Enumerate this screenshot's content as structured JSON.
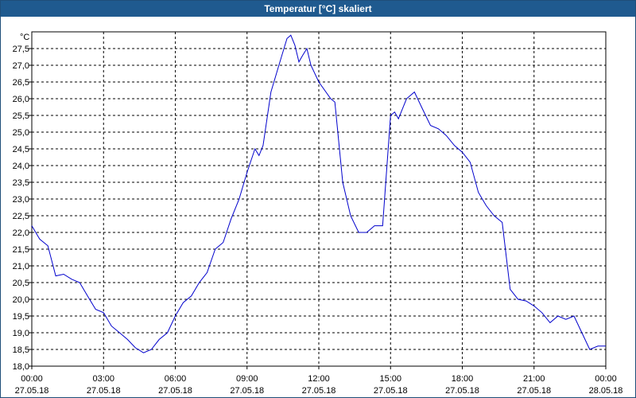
{
  "window": {
    "title": "Temperatur [°C] skaliert"
  },
  "chart_data": {
    "type": "line",
    "title": "Temperatur [°C] skaliert",
    "ylabel": "°C",
    "xlabel": "",
    "ylim": [
      18.0,
      28.0
    ],
    "xlim": [
      0,
      24
    ],
    "grid": true,
    "line_color": "#0000cc",
    "y_ticks": [
      "18,0",
      "18,5",
      "19,0",
      "19,5",
      "20,0",
      "20,5",
      "21,0",
      "21,5",
      "22,0",
      "22,5",
      "23,0",
      "23,5",
      "24,0",
      "24,5",
      "25,0",
      "25,5",
      "26,0",
      "26,5",
      "27,0",
      "27,5"
    ],
    "x_ticks": [
      {
        "time": "00:00",
        "date": "27.05.18"
      },
      {
        "time": "03:00",
        "date": "27.05.18"
      },
      {
        "time": "06:00",
        "date": "27.05.18"
      },
      {
        "time": "09:00",
        "date": "27.05.18"
      },
      {
        "time": "12:00",
        "date": "27.05.18"
      },
      {
        "time": "15:00",
        "date": "27.05.18"
      },
      {
        "time": "18:00",
        "date": "27.05.18"
      },
      {
        "time": "21:00",
        "date": "27.05.18"
      },
      {
        "time": "00:00",
        "date": "28.05.18"
      }
    ],
    "series": [
      {
        "x": [
          0,
          0.33,
          0.67,
          1,
          1.33,
          1.67,
          2,
          2.33,
          2.67,
          3,
          3.33,
          3.67,
          4,
          4.33,
          4.67,
          5,
          5.33,
          5.67,
          6,
          6.33,
          6.67,
          7,
          7.33,
          7.67,
          8,
          8.33,
          8.67,
          9,
          9.33,
          9.5,
          9.67,
          10,
          10.33,
          10.67,
          10.83,
          11,
          11.17,
          11.33,
          11.5,
          11.67,
          12,
          12.5,
          12.67,
          13,
          13.33,
          13.67,
          14,
          14.33,
          14.67,
          15,
          15.17,
          15.33,
          15.67,
          16,
          16.33,
          16.67,
          17,
          17.33,
          17.67,
          18,
          18.33,
          18.67,
          19,
          19.33,
          19.67,
          20,
          20.33,
          20.67,
          21,
          21.33,
          21.67,
          22,
          22.33,
          22.67,
          23,
          23.33,
          23.67,
          24
        ],
        "y": [
          22.2,
          21.8,
          21.6,
          20.7,
          20.75,
          20.6,
          20.5,
          20.1,
          19.7,
          19.6,
          19.2,
          19.0,
          18.8,
          18.55,
          18.4,
          18.5,
          18.8,
          19.0,
          19.5,
          19.9,
          20.1,
          20.5,
          20.8,
          21.5,
          21.7,
          22.4,
          23.0,
          23.8,
          24.5,
          24.3,
          24.6,
          26.2,
          27.0,
          27.8,
          27.9,
          27.6,
          27.1,
          27.3,
          27.5,
          27.0,
          26.5,
          26.0,
          25.9,
          23.5,
          22.5,
          22.0,
          22.0,
          22.2,
          22.2,
          25.5,
          25.6,
          25.4,
          26.0,
          26.2,
          25.7,
          25.2,
          25.1,
          24.9,
          24.6,
          24.4,
          24.1,
          23.2,
          22.8,
          22.5,
          22.3,
          20.3,
          20.0,
          19.95,
          19.8,
          19.6,
          19.3,
          19.5,
          19.4,
          19.5,
          19.0,
          18.5,
          18.6,
          18.6
        ]
      }
    ]
  }
}
